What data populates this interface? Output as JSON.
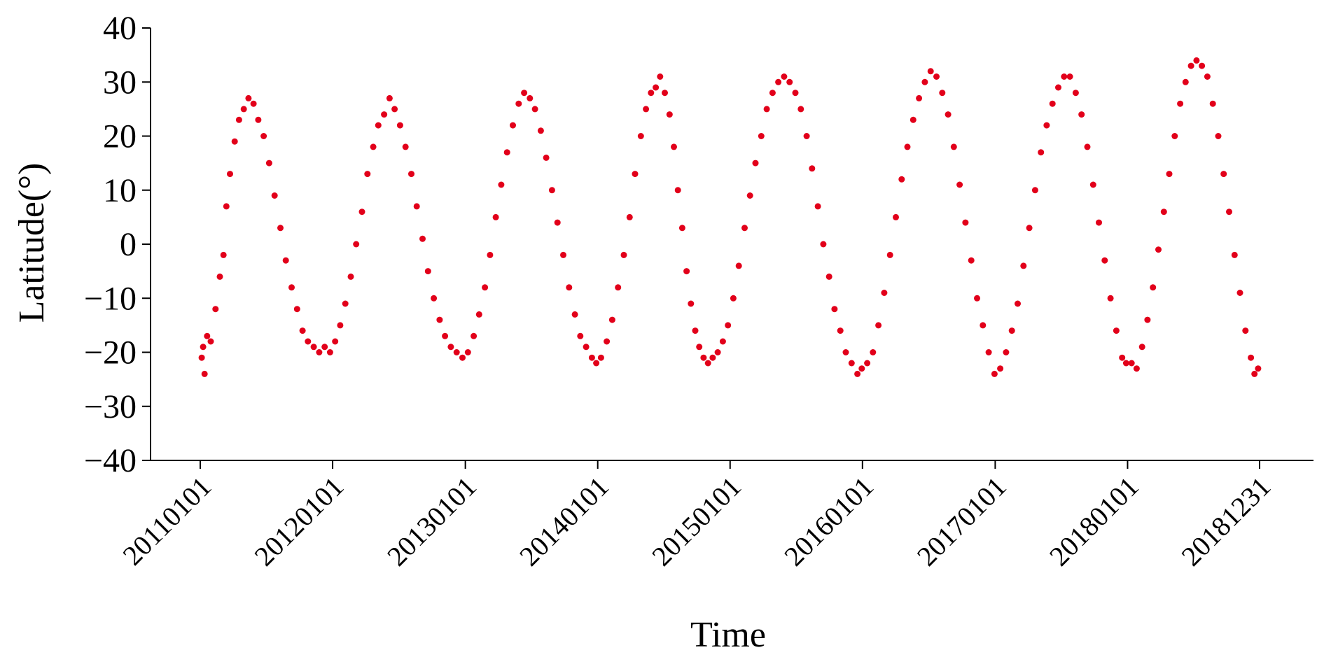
{
  "chart_data": {
    "type": "scatter",
    "title": "",
    "xlabel": "Time",
    "ylabel": "Latitude(°)",
    "ylim": [
      -40,
      40
    ],
    "xlim": [
      "2011-01-01",
      "2018-12-31"
    ],
    "grid": false,
    "legend": "none",
    "marker_color": "#e2001a",
    "y_ticks": [
      {
        "value": 40,
        "label": "40"
      },
      {
        "value": 30,
        "label": "30"
      },
      {
        "value": 20,
        "label": "20"
      },
      {
        "value": 10,
        "label": "10"
      },
      {
        "value": 0,
        "label": "0"
      },
      {
        "value": -10,
        "label": "−10"
      },
      {
        "value": -20,
        "label": "−20"
      },
      {
        "value": -30,
        "label": "−30"
      },
      {
        "value": -40,
        "label": "−40"
      }
    ],
    "x_ticks": [
      {
        "date": "2011-01-01",
        "label": "20110101"
      },
      {
        "date": "2012-01-01",
        "label": "20120101"
      },
      {
        "date": "2013-01-01",
        "label": "20130101"
      },
      {
        "date": "2014-01-01",
        "label": "20140101"
      },
      {
        "date": "2015-01-01",
        "label": "20150101"
      },
      {
        "date": "2016-01-01",
        "label": "20160101"
      },
      {
        "date": "2017-01-01",
        "label": "20170101"
      },
      {
        "date": "2018-01-01",
        "label": "20180101"
      },
      {
        "date": "2018-12-31",
        "label": "20181231"
      }
    ],
    "series": [
      {
        "points": [
          [
            "2011-01-05",
            -21
          ],
          [
            "2011-01-09",
            -19
          ],
          [
            "2011-01-13",
            -24
          ],
          [
            "2011-01-20",
            -17
          ],
          [
            "2011-01-30",
            -18
          ],
          [
            "2011-02-12",
            -12
          ],
          [
            "2011-02-24",
            -6
          ],
          [
            "2011-03-06",
            -2
          ],
          [
            "2011-03-14",
            7
          ],
          [
            "2011-03-24",
            13
          ],
          [
            "2011-04-06",
            19
          ],
          [
            "2011-04-18",
            23
          ],
          [
            "2011-05-01",
            25
          ],
          [
            "2011-05-14",
            27
          ],
          [
            "2011-05-28",
            26
          ],
          [
            "2011-06-10",
            23
          ],
          [
            "2011-06-25",
            20
          ],
          [
            "2011-07-10",
            15
          ],
          [
            "2011-07-25",
            9
          ],
          [
            "2011-08-10",
            3
          ],
          [
            "2011-08-25",
            -3
          ],
          [
            "2011-09-10",
            -8
          ],
          [
            "2011-09-25",
            -12
          ],
          [
            "2011-10-10",
            -16
          ],
          [
            "2011-10-25",
            -18
          ],
          [
            "2011-11-10",
            -19
          ],
          [
            "2011-11-25",
            -20
          ],
          [
            "2011-12-10",
            -19
          ],
          [
            "2011-12-25",
            -20
          ],
          [
            "2012-01-08",
            -18
          ],
          [
            "2012-01-22",
            -15
          ],
          [
            "2012-02-05",
            -11
          ],
          [
            "2012-02-20",
            -6
          ],
          [
            "2012-03-06",
            0
          ],
          [
            "2012-03-22",
            6
          ],
          [
            "2012-04-06",
            13
          ],
          [
            "2012-04-22",
            18
          ],
          [
            "2012-05-06",
            22
          ],
          [
            "2012-05-22",
            24
          ],
          [
            "2012-06-06",
            27
          ],
          [
            "2012-06-20",
            25
          ],
          [
            "2012-07-05",
            22
          ],
          [
            "2012-07-20",
            18
          ],
          [
            "2012-08-05",
            13
          ],
          [
            "2012-08-20",
            7
          ],
          [
            "2012-09-05",
            1
          ],
          [
            "2012-09-20",
            -5
          ],
          [
            "2012-10-06",
            -10
          ],
          [
            "2012-10-22",
            -14
          ],
          [
            "2012-11-06",
            -17
          ],
          [
            "2012-11-22",
            -19
          ],
          [
            "2012-12-08",
            -20
          ],
          [
            "2012-12-24",
            -21
          ],
          [
            "2013-01-08",
            -20
          ],
          [
            "2013-01-24",
            -17
          ],
          [
            "2013-02-08",
            -13
          ],
          [
            "2013-02-24",
            -8
          ],
          [
            "2013-03-10",
            -2
          ],
          [
            "2013-03-26",
            5
          ],
          [
            "2013-04-10",
            11
          ],
          [
            "2013-04-26",
            17
          ],
          [
            "2013-05-12",
            22
          ],
          [
            "2013-05-28",
            26
          ],
          [
            "2013-06-12",
            28
          ],
          [
            "2013-06-28",
            27
          ],
          [
            "2013-07-12",
            25
          ],
          [
            "2013-07-28",
            21
          ],
          [
            "2013-08-12",
            16
          ],
          [
            "2013-08-28",
            10
          ],
          [
            "2013-09-12",
            4
          ],
          [
            "2013-09-28",
            -2
          ],
          [
            "2013-10-14",
            -8
          ],
          [
            "2013-10-30",
            -13
          ],
          [
            "2013-11-14",
            -17
          ],
          [
            "2013-11-30",
            -19
          ],
          [
            "2013-12-16",
            -21
          ],
          [
            "2013-12-28",
            -22
          ],
          [
            "2014-01-10",
            -21
          ],
          [
            "2014-01-26",
            -18
          ],
          [
            "2014-02-10",
            -14
          ],
          [
            "2014-02-26",
            -8
          ],
          [
            "2014-03-14",
            -2
          ],
          [
            "2014-03-30",
            5
          ],
          [
            "2014-04-14",
            13
          ],
          [
            "2014-04-30",
            20
          ],
          [
            "2014-05-14",
            25
          ],
          [
            "2014-05-28",
            28
          ],
          [
            "2014-06-10",
            29
          ],
          [
            "2014-06-22",
            31
          ],
          [
            "2014-07-05",
            28
          ],
          [
            "2014-07-18",
            24
          ],
          [
            "2014-07-30",
            18
          ],
          [
            "2014-08-10",
            10
          ],
          [
            "2014-08-22",
            3
          ],
          [
            "2014-09-03",
            -5
          ],
          [
            "2014-09-15",
            -11
          ],
          [
            "2014-09-27",
            -16
          ],
          [
            "2014-10-08",
            -19
          ],
          [
            "2014-10-20",
            -21
          ],
          [
            "2014-11-01",
            -22
          ],
          [
            "2014-11-14",
            -21
          ],
          [
            "2014-11-28",
            -20
          ],
          [
            "2014-12-12",
            -18
          ],
          [
            "2014-12-26",
            -15
          ],
          [
            "2015-01-10",
            -10
          ],
          [
            "2015-01-25",
            -4
          ],
          [
            "2015-02-10",
            3
          ],
          [
            "2015-02-25",
            9
          ],
          [
            "2015-03-12",
            15
          ],
          [
            "2015-03-28",
            20
          ],
          [
            "2015-04-12",
            25
          ],
          [
            "2015-04-28",
            28
          ],
          [
            "2015-05-14",
            30
          ],
          [
            "2015-05-30",
            31
          ],
          [
            "2015-06-14",
            30
          ],
          [
            "2015-06-30",
            28
          ],
          [
            "2015-07-15",
            25
          ],
          [
            "2015-07-31",
            20
          ],
          [
            "2015-08-15",
            14
          ],
          [
            "2015-08-31",
            7
          ],
          [
            "2015-09-15",
            0
          ],
          [
            "2015-10-01",
            -6
          ],
          [
            "2015-10-16",
            -12
          ],
          [
            "2015-11-01",
            -16
          ],
          [
            "2015-11-16",
            -20
          ],
          [
            "2015-12-02",
            -22
          ],
          [
            "2015-12-18",
            -24
          ],
          [
            "2015-12-30",
            -23
          ],
          [
            "2016-01-14",
            -22
          ],
          [
            "2016-01-30",
            -20
          ],
          [
            "2016-02-14",
            -15
          ],
          [
            "2016-03-01",
            -9
          ],
          [
            "2016-03-17",
            -2
          ],
          [
            "2016-04-02",
            5
          ],
          [
            "2016-04-18",
            12
          ],
          [
            "2016-05-04",
            18
          ],
          [
            "2016-05-20",
            23
          ],
          [
            "2016-06-05",
            27
          ],
          [
            "2016-06-21",
            30
          ],
          [
            "2016-07-07",
            32
          ],
          [
            "2016-07-23",
            31
          ],
          [
            "2016-08-08",
            28
          ],
          [
            "2016-08-24",
            24
          ],
          [
            "2016-09-09",
            18
          ],
          [
            "2016-09-25",
            11
          ],
          [
            "2016-10-11",
            4
          ],
          [
            "2016-10-27",
            -3
          ],
          [
            "2016-11-12",
            -10
          ],
          [
            "2016-11-28",
            -15
          ],
          [
            "2016-12-14",
            -20
          ],
          [
            "2016-12-30",
            -24
          ],
          [
            "2017-01-15",
            -23
          ],
          [
            "2017-01-31",
            -20
          ],
          [
            "2017-02-16",
            -16
          ],
          [
            "2017-03-04",
            -11
          ],
          [
            "2017-03-20",
            -4
          ],
          [
            "2017-04-05",
            3
          ],
          [
            "2017-04-21",
            10
          ],
          [
            "2017-05-07",
            17
          ],
          [
            "2017-05-23",
            22
          ],
          [
            "2017-06-08",
            26
          ],
          [
            "2017-06-24",
            29
          ],
          [
            "2017-07-10",
            31
          ],
          [
            "2017-07-26",
            31
          ],
          [
            "2017-08-11",
            28
          ],
          [
            "2017-08-27",
            24
          ],
          [
            "2017-09-12",
            18
          ],
          [
            "2017-09-28",
            11
          ],
          [
            "2017-10-14",
            4
          ],
          [
            "2017-10-30",
            -3
          ],
          [
            "2017-11-15",
            -10
          ],
          [
            "2017-12-01",
            -16
          ],
          [
            "2017-12-17",
            -21
          ],
          [
            "2017-12-28",
            -22
          ],
          [
            "2018-01-12",
            -22
          ],
          [
            "2018-01-26",
            -23
          ],
          [
            "2018-02-10",
            -19
          ],
          [
            "2018-02-25",
            -14
          ],
          [
            "2018-03-12",
            -8
          ],
          [
            "2018-03-27",
            -1
          ],
          [
            "2018-04-11",
            6
          ],
          [
            "2018-04-26",
            13
          ],
          [
            "2018-05-11",
            20
          ],
          [
            "2018-05-26",
            26
          ],
          [
            "2018-06-10",
            30
          ],
          [
            "2018-06-25",
            33
          ],
          [
            "2018-07-10",
            34
          ],
          [
            "2018-07-25",
            33
          ],
          [
            "2018-08-09",
            31
          ],
          [
            "2018-08-24",
            26
          ],
          [
            "2018-09-08",
            20
          ],
          [
            "2018-09-23",
            13
          ],
          [
            "2018-10-08",
            6
          ],
          [
            "2018-10-23",
            -2
          ],
          [
            "2018-11-07",
            -9
          ],
          [
            "2018-11-22",
            -16
          ],
          [
            "2018-12-07",
            -21
          ],
          [
            "2018-12-17",
            -24
          ],
          [
            "2018-12-27",
            -23
          ]
        ]
      }
    ]
  }
}
